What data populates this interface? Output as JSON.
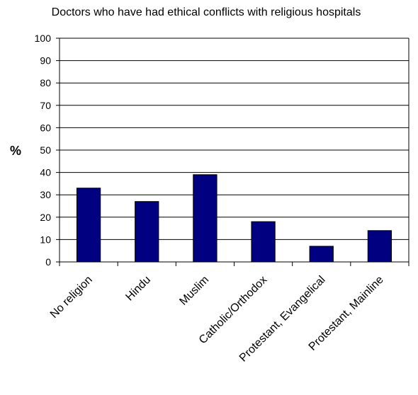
{
  "chart_data": {
    "type": "bar",
    "title": "Doctors who have had ethical conflicts with religious hospitals",
    "xlabel": "",
    "ylabel": "%",
    "categories": [
      "No religion",
      "Hindu",
      "Muslim",
      "Catholic/Orthodox",
      "Protestant, Evangelical",
      "Protestant, Mainline"
    ],
    "values": [
      33,
      27,
      39,
      18,
      7,
      14
    ],
    "ylim": [
      0,
      100
    ],
    "yticks": [
      "0",
      "10",
      "20",
      "30",
      "40",
      "50",
      "60",
      "70",
      "80",
      "90",
      "100"
    ],
    "grid": true,
    "legend": "none",
    "bar_color": "#000080",
    "axis_color": "#000000"
  }
}
